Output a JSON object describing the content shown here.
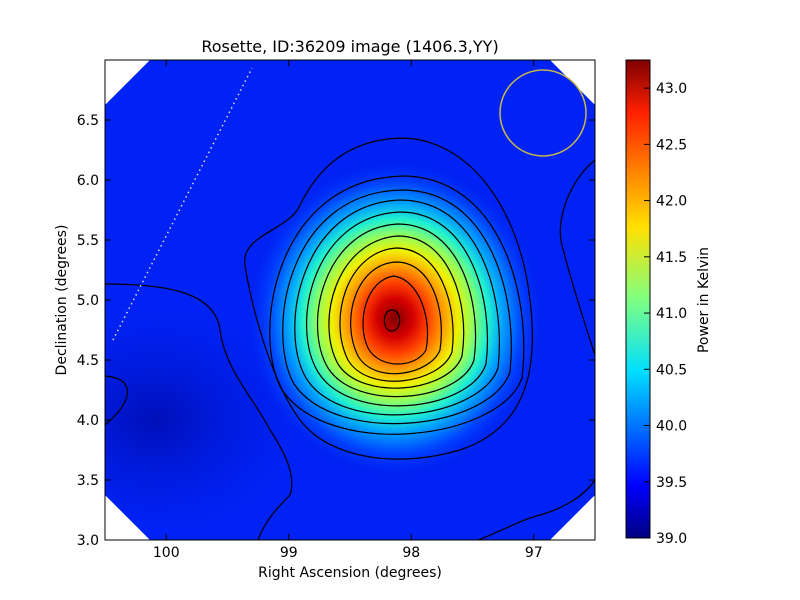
{
  "chart_data": {
    "type": "heatmap",
    "title": "Rosette, ID:36209 image (1406.3,YY)",
    "xlabel": "Right Ascension (degrees)",
    "ylabel": "Declination (degrees)",
    "xlim": [
      100.5,
      96.5
    ],
    "ylim": [
      3.0,
      7.0
    ],
    "x_ticks": [
      "100",
      "99",
      "98",
      "97"
    ],
    "x_tick_values": [
      100,
      99,
      98,
      97
    ],
    "y_ticks": [
      "3.0",
      "3.5",
      "4.0",
      "4.5",
      "5.0",
      "5.5",
      "6.0",
      "6.5"
    ],
    "y_tick_values": [
      3.0,
      3.5,
      4.0,
      4.5,
      5.0,
      5.5,
      6.0,
      6.5
    ],
    "colorbar": {
      "label": "Power in Kelvin",
      "range": [
        39.0,
        43.25
      ],
      "ticks": [
        "39.0",
        "39.5",
        "40.0",
        "40.5",
        "41.0",
        "41.5",
        "42.0",
        "42.5",
        "43.0"
      ],
      "tick_values": [
        39.0,
        39.5,
        40.0,
        40.5,
        41.0,
        41.5,
        42.0,
        42.5,
        43.0
      ],
      "colormap": "jet"
    },
    "peak": {
      "ra": 98.08,
      "dec": 4.83,
      "value": 43.25
    },
    "background_level": 39.45,
    "contours": "black",
    "beam_circle_color": "#c8b84a",
    "dotted_line_color": "#dddddd"
  }
}
